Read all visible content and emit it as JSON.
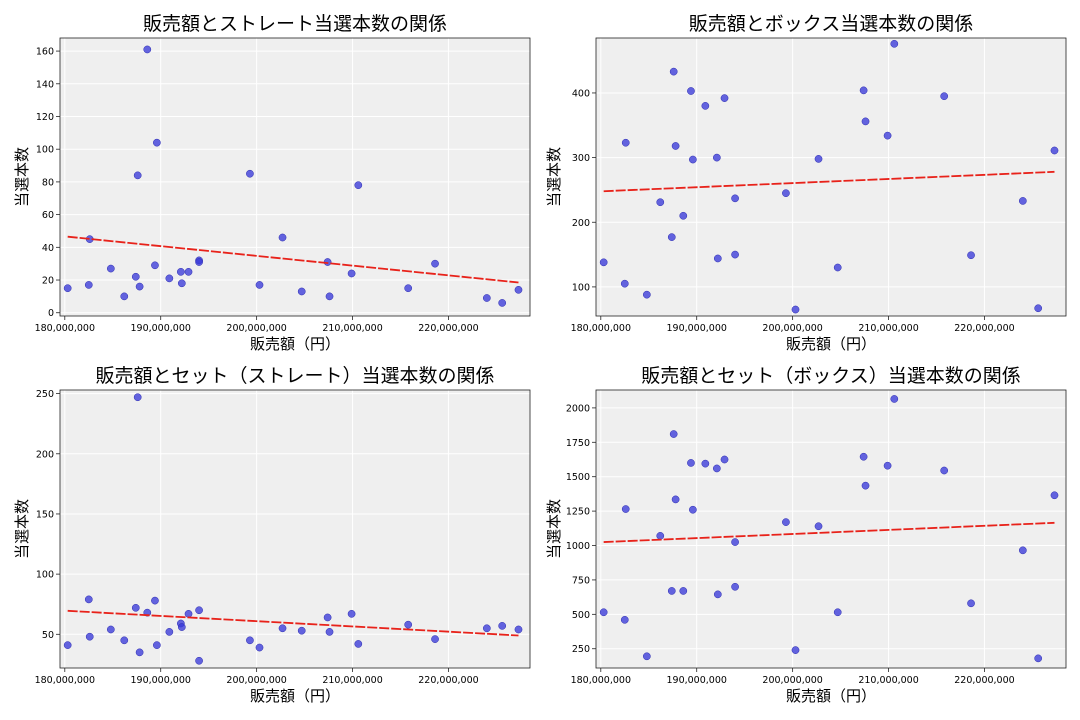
{
  "chart_data": [
    {
      "type": "scatter",
      "title": "販売額とストレート当選本数の関係",
      "xlabel": "販売額（円）",
      "ylabel": "当選本数",
      "xlim": [
        179500000,
        228500000
      ],
      "ylim": [
        -2,
        168
      ],
      "xticks": [
        180000000,
        190000000,
        200000000,
        210000000,
        220000000
      ],
      "xtick_labels": [
        "180,000,000",
        "190,000,000",
        "200,000,000",
        "210,000,000",
        "220,000,000"
      ],
      "yticks": [
        0,
        20,
        40,
        60,
        80,
        100,
        120,
        140,
        160
      ],
      "ytick_labels": [
        "0",
        "20",
        "40",
        "60",
        "80",
        "100",
        "120",
        "140",
        "160"
      ],
      "grid": true,
      "series": [
        {
          "kind": "scatter",
          "color": "#3a3ad8",
          "points": [
            [
              180300000,
              15
            ],
            [
              182500000,
              17
            ],
            [
              182600000,
              45
            ],
            [
              184800000,
              27
            ],
            [
              186200000,
              10
            ],
            [
              187400000,
              22
            ],
            [
              187600000,
              84
            ],
            [
              187800000,
              16
            ],
            [
              188600000,
              161
            ],
            [
              189400000,
              29
            ],
            [
              189600000,
              104
            ],
            [
              190900000,
              21
            ],
            [
              192100000,
              25
            ],
            [
              192200000,
              18
            ],
            [
              192900000,
              25
            ],
            [
              194000000,
              32
            ],
            [
              194000000,
              31
            ],
            [
              199300000,
              85
            ],
            [
              200300000,
              17
            ],
            [
              202700000,
              46
            ],
            [
              204700000,
              13
            ],
            [
              207400000,
              31
            ],
            [
              207600000,
              10
            ],
            [
              209900000,
              24
            ],
            [
              210600000,
              78
            ],
            [
              215800000,
              15
            ],
            [
              218600000,
              30
            ],
            [
              224000000,
              9
            ],
            [
              225600000,
              6
            ],
            [
              227300000,
              14
            ]
          ]
        },
        {
          "kind": "trendline",
          "color": "#e8221a",
          "points": [
            [
              180300000,
              46.5
            ],
            [
              227300000,
              18.5
            ]
          ]
        }
      ]
    },
    {
      "type": "scatter",
      "title": "販売額とボックス当選本数の関係",
      "xlabel": "販売額（円）",
      "ylabel": "当選本数",
      "xlim": [
        179500000,
        228500000
      ],
      "ylim": [
        55,
        485
      ],
      "xticks": [
        180000000,
        190000000,
        200000000,
        210000000,
        220000000
      ],
      "xtick_labels": [
        "180,000,000",
        "190,000,000",
        "200,000,000",
        "210,000,000",
        "220,000,000"
      ],
      "yticks": [
        100,
        200,
        300,
        400
      ],
      "ytick_labels": [
        "100",
        "200",
        "300",
        "400"
      ],
      "grid": true,
      "series": [
        {
          "kind": "scatter",
          "color": "#3a3ad8",
          "points": [
            [
              180300000,
              138
            ],
            [
              182500000,
              105
            ],
            [
              182600000,
              323
            ],
            [
              184800000,
              88
            ],
            [
              186200000,
              231
            ],
            [
              187400000,
              177
            ],
            [
              187600000,
              433
            ],
            [
              187800000,
              318
            ],
            [
              188600000,
              210
            ],
            [
              189400000,
              403
            ],
            [
              189600000,
              297
            ],
            [
              190900000,
              380
            ],
            [
              192100000,
              300
            ],
            [
              192200000,
              144
            ],
            [
              192900000,
              392
            ],
            [
              194000000,
              237
            ],
            [
              194000000,
              150
            ],
            [
              199300000,
              245
            ],
            [
              200300000,
              65
            ],
            [
              202700000,
              298
            ],
            [
              204700000,
              130
            ],
            [
              207400000,
              404
            ],
            [
              207600000,
              356
            ],
            [
              209900000,
              334
            ],
            [
              210600000,
              476
            ],
            [
              215800000,
              395
            ],
            [
              218600000,
              149
            ],
            [
              224000000,
              233
            ],
            [
              225600000,
              67
            ],
            [
              227300000,
              311
            ]
          ]
        },
        {
          "kind": "trendline",
          "color": "#e8221a",
          "points": [
            [
              180300000,
              248
            ],
            [
              227300000,
              278
            ]
          ]
        }
      ]
    },
    {
      "type": "scatter",
      "title": "販売額とセット（ストレート）当選本数の関係",
      "xlabel": "販売額（円）",
      "ylabel": "当選本数",
      "xlim": [
        179500000,
        228500000
      ],
      "ylim": [
        22,
        253
      ],
      "xticks": [
        180000000,
        190000000,
        200000000,
        210000000,
        220000000
      ],
      "xtick_labels": [
        "180,000,000",
        "190,000,000",
        "200,000,000",
        "210,000,000",
        "220,000,000"
      ],
      "yticks": [
        50,
        100,
        150,
        200,
        250
      ],
      "ytick_labels": [
        "50",
        "100",
        "150",
        "200",
        "250"
      ],
      "grid": true,
      "series": [
        {
          "kind": "scatter",
          "color": "#3a3ad8",
          "points": [
            [
              180300000,
              41
            ],
            [
              182500000,
              79
            ],
            [
              182600000,
              48
            ],
            [
              184800000,
              54
            ],
            [
              186200000,
              45
            ],
            [
              187400000,
              72
            ],
            [
              187600000,
              247
            ],
            [
              187800000,
              35
            ],
            [
              188600000,
              68
            ],
            [
              189400000,
              78
            ],
            [
              189600000,
              41
            ],
            [
              190900000,
              52
            ],
            [
              192100000,
              59
            ],
            [
              192200000,
              56
            ],
            [
              192900000,
              67
            ],
            [
              194000000,
              28
            ],
            [
              194000000,
              70
            ],
            [
              199300000,
              45
            ],
            [
              200300000,
              39
            ],
            [
              202700000,
              55
            ],
            [
              204700000,
              53
            ],
            [
              207400000,
              64
            ],
            [
              207600000,
              52
            ],
            [
              209900000,
              67
            ],
            [
              210600000,
              42
            ],
            [
              215800000,
              58
            ],
            [
              218600000,
              46
            ],
            [
              224000000,
              55
            ],
            [
              225600000,
              57
            ],
            [
              227300000,
              54
            ]
          ]
        },
        {
          "kind": "trendline",
          "color": "#e8221a",
          "points": [
            [
              180300000,
              69.5
            ],
            [
              227300000,
              49
            ]
          ]
        }
      ]
    },
    {
      "type": "scatter",
      "title": "販売額とセット（ボックス）当選本数の関係",
      "xlabel": "販売額（円）",
      "ylabel": "当選本数",
      "xlim": [
        179500000,
        228500000
      ],
      "ylim": [
        110,
        2130
      ],
      "xticks": [
        180000000,
        190000000,
        200000000,
        210000000,
        220000000
      ],
      "xtick_labels": [
        "180,000,000",
        "190,000,000",
        "200,000,000",
        "210,000,000",
        "220,000,000"
      ],
      "yticks": [
        250,
        500,
        750,
        1000,
        1250,
        1500,
        1750,
        2000
      ],
      "ytick_labels": [
        "250",
        "500",
        "750",
        "1000",
        "1250",
        "1500",
        "1750",
        "2000"
      ],
      "grid": true,
      "series": [
        {
          "kind": "scatter",
          "color": "#3a3ad8",
          "points": [
            [
              180300000,
              515
            ],
            [
              182500000,
              460
            ],
            [
              182600000,
              1265
            ],
            [
              184800000,
              195
            ],
            [
              186200000,
              1070
            ],
            [
              187400000,
              670
            ],
            [
              187600000,
              1810
            ],
            [
              187800000,
              1335
            ],
            [
              188600000,
              670
            ],
            [
              189400000,
              1600
            ],
            [
              189600000,
              1260
            ],
            [
              190900000,
              1595
            ],
            [
              192100000,
              1560
            ],
            [
              192200000,
              645
            ],
            [
              192900000,
              1625
            ],
            [
              194000000,
              1025
            ],
            [
              194000000,
              700
            ],
            [
              199300000,
              1170
            ],
            [
              200300000,
              240
            ],
            [
              202700000,
              1140
            ],
            [
              204700000,
              515
            ],
            [
              207400000,
              1645
            ],
            [
              207600000,
              1435
            ],
            [
              209900000,
              1580
            ],
            [
              210600000,
              2065
            ],
            [
              215800000,
              1545
            ],
            [
              218600000,
              580
            ],
            [
              224000000,
              965
            ],
            [
              225600000,
              180
            ],
            [
              227300000,
              1365
            ]
          ]
        },
        {
          "kind": "trendline",
          "color": "#e8221a",
          "points": [
            [
              180300000,
              1025
            ],
            [
              227300000,
              1165
            ]
          ]
        }
      ]
    }
  ]
}
